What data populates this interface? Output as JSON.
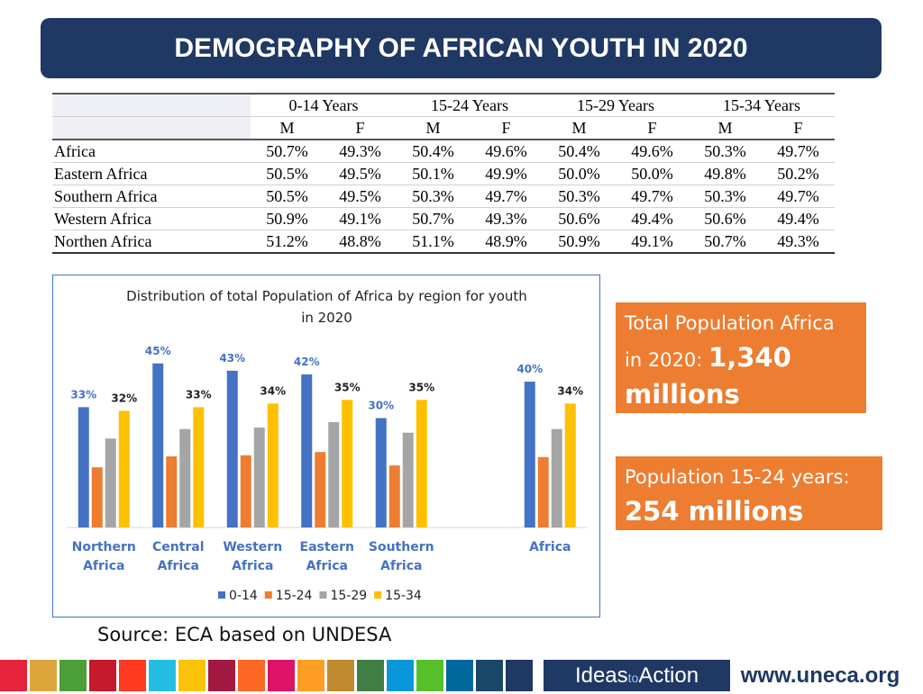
{
  "title": "DEMOGRAPHY OF AFRICAN YOUTH IN 2020",
  "table": {
    "col_groups": [
      "0-14 Years",
      "15-24 Years",
      "15-29 Years",
      "15-34 Years"
    ],
    "sub_headers": [
      "M",
      "F",
      "M",
      "F",
      "M",
      "F",
      "M",
      "F"
    ],
    "rows": [
      [
        "Africa",
        "50.7%",
        "49.3%",
        "50.4%",
        "49.6%",
        "50.4%",
        "49.6%",
        "50.3%",
        "49.7%"
      ],
      [
        "Eastern Africa",
        "50.5%",
        "49.5%",
        "50.1%",
        "49.9%",
        "50.0%",
        "50.0%",
        "49.8%",
        "50.2%"
      ],
      [
        "Southern Africa",
        "50.5%",
        "49.5%",
        "50.3%",
        "49.7%",
        "50.3%",
        "49.7%",
        "50.3%",
        "49.7%"
      ],
      [
        "Western Africa",
        "50.9%",
        "49.1%",
        "50.7%",
        "49.3%",
        "50.6%",
        "49.4%",
        "50.6%",
        "49.4%"
      ],
      [
        "Northen Africa",
        "51.2%",
        "48.8%",
        "51.1%",
        "48.9%",
        "50.9%",
        "49.1%",
        "50.7%",
        "49.3%"
      ]
    ]
  },
  "chart_data": {
    "type": "bar",
    "title": "Distribution of total Population of Africa by region for youth in 2020",
    "categories": [
      "Northern Africa",
      "Central Africa",
      "Western Africa",
      "Eastern Africa",
      "Southern Africa",
      null,
      "Africa"
    ],
    "series": [
      {
        "name": "0-14",
        "color": "#4472c4",
        "values": [
          33,
          45,
          43,
          42,
          30,
          null,
          40
        ],
        "value_labels": [
          "33%",
          "45%",
          "43%",
          "42%",
          "30%",
          null,
          "40%"
        ]
      },
      {
        "name": "15-24",
        "color": "#ed7d31",
        "values": [
          16.5,
          19.5,
          19.8,
          20.7,
          17,
          null,
          19.3
        ]
      },
      {
        "name": "15-29",
        "color": "#a5a5a5",
        "values": [
          24.4,
          27,
          27.4,
          28.9,
          26,
          null,
          27
        ]
      },
      {
        "name": "15-34",
        "color": "#ffc000",
        "values": [
          32,
          33,
          34,
          35,
          35,
          null,
          34
        ],
        "value_labels": [
          "32%",
          "33%",
          "34%",
          "35%",
          "35%",
          null,
          "34%"
        ]
      }
    ],
    "legend": "bottom"
  },
  "boxes": [
    {
      "text": "Total Population Africa in 2020:",
      "highlight": "1,340 millions"
    },
    {
      "text": "Population 15-24 years:",
      "highlight": "254 millions"
    }
  ],
  "source": "Source: ECA based on UNDESA",
  "footer": {
    "brand": [
      "Ideas",
      "to",
      "Action"
    ],
    "url": "www.uneca.org"
  }
}
